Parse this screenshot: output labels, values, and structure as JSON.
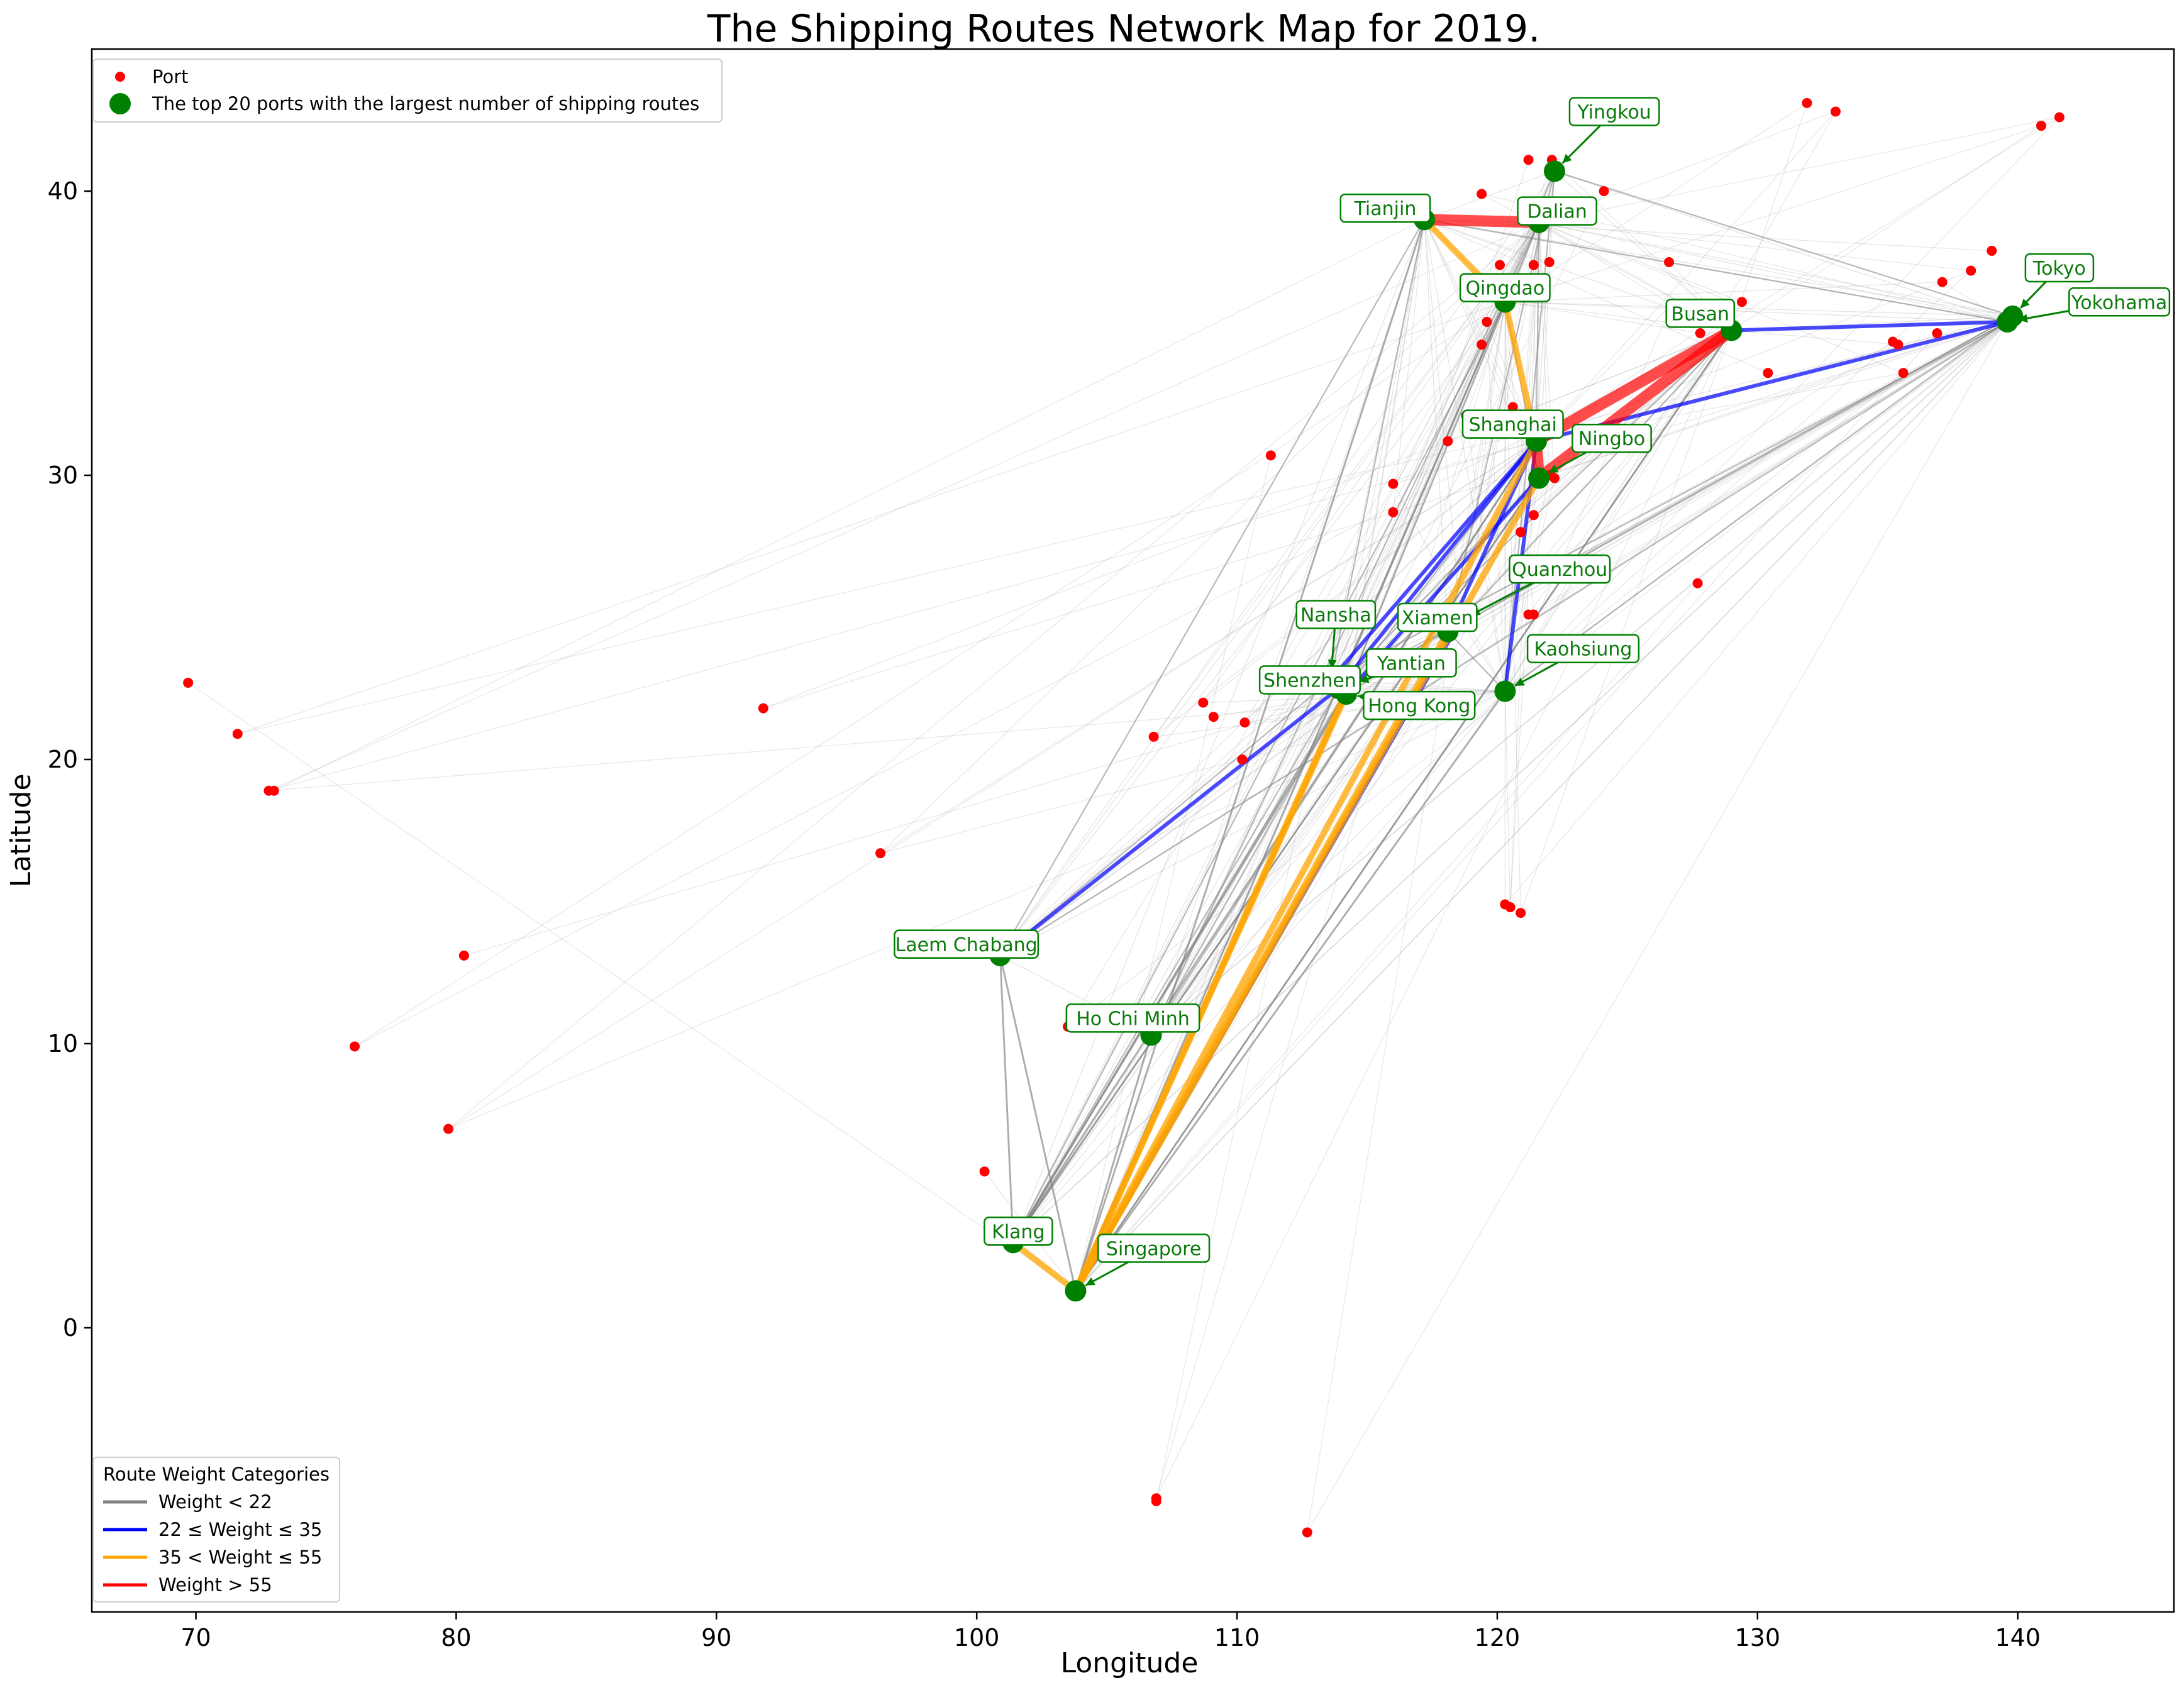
{
  "chart_data": {
    "type": "scatter",
    "title": "The Shipping Routes Network Map for 2019.",
    "xlabel": "Longitude",
    "ylabel": "Latitude",
    "xlim": [
      66,
      146
    ],
    "ylim": [
      -10,
      45
    ],
    "xticks": [
      70,
      80,
      90,
      100,
      110,
      120,
      130,
      140
    ],
    "yticks": [
      0,
      10,
      20,
      30,
      40
    ],
    "grid": false,
    "colors": {
      "port": "#ff0000",
      "top_port": "#008000",
      "w_low": "#808080",
      "w_mid": "#0000ff",
      "w_high": "#ffa500",
      "w_top": "#ff0000",
      "label_text": "#0a7a0a"
    },
    "legend_ports": {
      "placement": "upper-left",
      "entries": [
        {
          "label": "Port",
          "marker": "small-red-dot"
        },
        {
          "label": "The top 20 ports with the largest number of shipping routes",
          "marker": "large-green-dot"
        }
      ]
    },
    "legend_weights": {
      "placement": "lower-left",
      "title": "Route Weight Categories",
      "entries": [
        {
          "label": "Weight < 22",
          "category": "low"
        },
        {
          "label": "22 ≤ Weight ≤ 35",
          "category": "mid"
        },
        {
          "label": "35 < Weight ≤ 55",
          "category": "high"
        },
        {
          "label": "Weight > 55",
          "category": "top"
        }
      ]
    },
    "top_ports": [
      {
        "name": "Yingkou",
        "lon": 122.2,
        "lat": 40.7,
        "dlon": 2.3,
        "dlat": 2.1
      },
      {
        "name": "Tianjin",
        "lon": 117.2,
        "lat": 39.0,
        "dlon": -1.5,
        "dlat": 0.4
      },
      {
        "name": "Dalian",
        "lon": 121.6,
        "lat": 38.9,
        "dlon": 0.7,
        "dlat": 0.4
      },
      {
        "name": "Qingdao",
        "lon": 120.3,
        "lat": 36.1,
        "dlon": 0.0,
        "dlat": 0.5
      },
      {
        "name": "Busan",
        "lon": 129.0,
        "lat": 35.1,
        "dlon": -1.2,
        "dlat": 0.6
      },
      {
        "name": "Tokyo",
        "lon": 139.8,
        "lat": 35.6,
        "dlon": 1.8,
        "dlat": 1.7
      },
      {
        "name": "Yokohama",
        "lon": 139.6,
        "lat": 35.4,
        "dlon": 4.3,
        "dlat": 0.7
      },
      {
        "name": "Shanghai",
        "lon": 121.5,
        "lat": 31.2,
        "dlon": -0.9,
        "dlat": 0.6
      },
      {
        "name": "Ningbo",
        "lon": 121.6,
        "lat": 29.9,
        "dlon": 2.8,
        "dlat": 1.4
      },
      {
        "name": "Quanzhou",
        "lon": 118.6,
        "lat": 24.9,
        "dlon": 3.8,
        "dlat": 1.8
      },
      {
        "name": "Xiamen",
        "lon": 118.1,
        "lat": 24.5,
        "dlon": -0.4,
        "dlat": 0.5
      },
      {
        "name": "Nansha",
        "lon": 113.6,
        "lat": 22.8,
        "dlon": 0.2,
        "dlat": 2.3
      },
      {
        "name": "Yantian",
        "lon": 114.3,
        "lat": 22.6,
        "dlon": 2.4,
        "dlat": 0.8
      },
      {
        "name": "Shenzhen",
        "lon": 113.9,
        "lat": 22.5,
        "dlon": -1.1,
        "dlat": 0.3
      },
      {
        "name": "Hong Kong",
        "lon": 114.2,
        "lat": 22.3,
        "dlon": 2.8,
        "dlat": -0.4
      },
      {
        "name": "Kaohsiung",
        "lon": 120.3,
        "lat": 22.4,
        "dlon": 3.0,
        "dlat": 1.5
      },
      {
        "name": "Laem Chabang",
        "lon": 100.9,
        "lat": 13.1,
        "dlon": -1.3,
        "dlat": 0.4
      },
      {
        "name": "Ho Chi Minh",
        "lon": 106.7,
        "lat": 10.3,
        "dlon": -0.7,
        "dlat": 0.6
      },
      {
        "name": "Klang",
        "lon": 101.4,
        "lat": 3.0,
        "dlon": 0.2,
        "dlat": 0.4
      },
      {
        "name": "Singapore",
        "lon": 103.8,
        "lat": 1.3,
        "dlon": 3.0,
        "dlat": 1.5
      }
    ],
    "ports": [
      [
        69.7,
        22.7
      ],
      [
        71.6,
        20.9
      ],
      [
        72.8,
        18.9
      ],
      [
        73.0,
        18.9
      ],
      [
        76.1,
        9.9
      ],
      [
        79.7,
        7.0
      ],
      [
        80.3,
        13.1
      ],
      [
        91.8,
        21.8
      ],
      [
        96.3,
        16.7
      ],
      [
        100.3,
        5.5
      ],
      [
        103.5,
        10.6
      ],
      [
        106.8,
        20.8
      ],
      [
        106.9,
        -6.1
      ],
      [
        106.9,
        -6.0
      ],
      [
        108.7,
        22.0
      ],
      [
        109.1,
        21.5
      ],
      [
        110.2,
        20.0
      ],
      [
        110.3,
        21.3
      ],
      [
        111.3,
        30.7
      ],
      [
        112.7,
        -7.2
      ],
      [
        116.0,
        29.7
      ],
      [
        116.0,
        28.7
      ],
      [
        118.1,
        31.2
      ],
      [
        118.8,
        32.1
      ],
      [
        119.4,
        34.6
      ],
      [
        119.4,
        39.9
      ],
      [
        119.6,
        35.4
      ],
      [
        120.1,
        37.4
      ],
      [
        120.3,
        14.9
      ],
      [
        120.5,
        14.8
      ],
      [
        120.6,
        32.4
      ],
      [
        120.9,
        14.6
      ],
      [
        120.9,
        28.0
      ],
      [
        121.2,
        41.1
      ],
      [
        121.2,
        25.1
      ],
      [
        121.4,
        37.4
      ],
      [
        121.4,
        28.6
      ],
      [
        121.4,
        25.1
      ],
      [
        122.0,
        30.0
      ],
      [
        122.0,
        37.5
      ],
      [
        122.1,
        41.1
      ],
      [
        122.2,
        29.9
      ],
      [
        124.1,
        40.0
      ],
      [
        126.6,
        37.5
      ],
      [
        126.7,
        36.0
      ],
      [
        127.7,
        26.2
      ],
      [
        127.8,
        35.0
      ],
      [
        129.4,
        36.1
      ],
      [
        130.4,
        33.6
      ],
      [
        131.9,
        43.1
      ],
      [
        133.0,
        42.8
      ],
      [
        135.2,
        34.7
      ],
      [
        135.4,
        34.6
      ],
      [
        135.6,
        33.6
      ],
      [
        136.9,
        35.0
      ],
      [
        137.1,
        36.8
      ],
      [
        138.2,
        37.2
      ],
      [
        139.0,
        37.9
      ],
      [
        140.9,
        42.3
      ],
      [
        141.6,
        42.6
      ]
    ],
    "routes": [
      {
        "from": "Singapore",
        "to": "Shanghai",
        "weight": 48
      },
      {
        "from": "Singapore",
        "to": "Ningbo",
        "weight": 46
      },
      {
        "from": "Singapore",
        "to": "Hong Kong",
        "weight": 44
      },
      {
        "from": "Singapore",
        "to": "Yantian",
        "weight": 42
      },
      {
        "from": "Singapore",
        "to": "Klang",
        "weight": 40
      },
      {
        "from": "Singapore",
        "to": "Xiamen",
        "weight": 38
      },
      {
        "from": "Singapore",
        "to": "Quanzhou",
        "weight": 24
      },
      {
        "from": "Singapore",
        "to": "Kaohsiung",
        "weight": 15
      },
      {
        "from": "Singapore",
        "to": "Laem Chabang",
        "weight": 14
      },
      {
        "from": "Singapore",
        "to": "Ho Chi Minh",
        "weight": 16
      },
      {
        "from": "Singapore",
        "to": "Busan",
        "weight": 12
      },
      {
        "from": "Singapore",
        "to": "Qingdao",
        "weight": 14
      },
      {
        "from": "Singapore",
        "to": "Tianjin",
        "weight": 12
      },
      {
        "from": "Klang",
        "to": "Shanghai",
        "weight": 18
      },
      {
        "from": "Klang",
        "to": "Hong Kong",
        "weight": 17
      },
      {
        "from": "Klang",
        "to": "Yantian",
        "weight": 16
      },
      {
        "from": "Klang",
        "to": "Ningbo",
        "weight": 15
      },
      {
        "from": "Klang",
        "to": "Laem Chabang",
        "weight": 12
      },
      {
        "from": "Shanghai",
        "to": "Ningbo",
        "weight": 70
      },
      {
        "from": "Shanghai",
        "to": "Busan",
        "weight": 65
      },
      {
        "from": "Ningbo",
        "to": "Busan",
        "weight": 60
      },
      {
        "from": "Tianjin",
        "to": "Dalian",
        "weight": 58
      },
      {
        "from": "Tianjin",
        "to": "Qingdao",
        "weight": 45
      },
      {
        "from": "Qingdao",
        "to": "Shanghai",
        "weight": 42
      },
      {
        "from": "Shanghai",
        "to": "Xiamen",
        "weight": 30
      },
      {
        "from": "Ningbo",
        "to": "Hong Kong",
        "weight": 28
      },
      {
        "from": "Shanghai",
        "to": "Shenzhen",
        "weight": 26
      },
      {
        "from": "Kaohsiung",
        "to": "Shanghai",
        "weight": 27
      },
      {
        "from": "Shanghai",
        "to": "Yokohama",
        "weight": 25
      },
      {
        "from": "Busan",
        "to": "Yokohama",
        "weight": 28
      },
      {
        "from": "Shenzhen",
        "to": "Laem Chabang",
        "weight": 29
      },
      {
        "from": "Hong Kong",
        "to": "Shenzhen",
        "weight": 24
      },
      {
        "from": "Nansha",
        "to": "Shanghai",
        "weight": 23
      }
    ]
  }
}
